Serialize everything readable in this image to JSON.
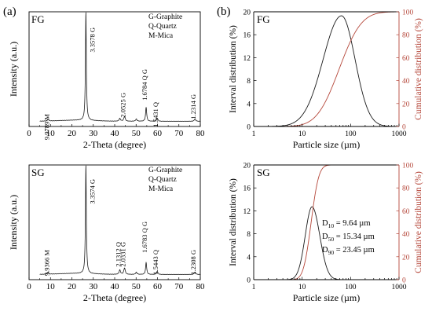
{
  "panel_labels": {
    "a": "(a)",
    "b": "(b)"
  },
  "chart_data": [
    {
      "id": "xrd-fg",
      "type": "line",
      "tag": "FG",
      "xlabel": "2-Theta (degree)",
      "ylabel": "Intensity (a.u.)",
      "xlim": [
        0,
        80
      ],
      "xticks": [
        0,
        10,
        20,
        30,
        40,
        50,
        60,
        70,
        80
      ],
      "legend_lines": [
        "G-Graphite",
        "Q-Quartz",
        "M-Mica"
      ],
      "color": "#1a1a1a",
      "peaks": [
        {
          "x": 8.9,
          "h": 0.018,
          "w": 0.35,
          "label": "9.9789 M"
        },
        {
          "x": 26.55,
          "h": 1.0,
          "w": 0.25,
          "label": "3.3578 G"
        },
        {
          "x": 42.4,
          "h": 0.025,
          "w": 0.4
        },
        {
          "x": 44.6,
          "h": 0.045,
          "w": 0.4,
          "label": "2.0525 G"
        },
        {
          "x": 50.1,
          "h": 0.02,
          "w": 0.4
        },
        {
          "x": 54.7,
          "h": 0.13,
          "w": 0.3,
          "label": "1.6784 Q G"
        },
        {
          "x": 59.9,
          "h": 0.03,
          "w": 0.35,
          "label": "1.5431 Q"
        },
        {
          "x": 77.5,
          "h": 0.022,
          "w": 0.4,
          "label": "1.2314 G"
        }
      ]
    },
    {
      "id": "xrd-sg",
      "type": "line",
      "tag": "SG",
      "xlabel": "2-Theta (degree)",
      "ylabel": "Intensity (a.u.)",
      "xlim": [
        0,
        80
      ],
      "xticks": [
        0,
        10,
        20,
        30,
        40,
        50,
        60,
        70,
        80
      ],
      "legend_lines": [
        "G-Graphite",
        "Q-Quartz",
        "M-Mica"
      ],
      "color": "#1a1a1a",
      "peaks": [
        {
          "x": 8.9,
          "h": 0.018,
          "w": 0.35,
          "label": "9.9366 M"
        },
        {
          "x": 26.55,
          "h": 1.0,
          "w": 0.25,
          "label": "3.3574 G"
        },
        {
          "x": 42.4,
          "h": 0.04,
          "w": 0.4,
          "label": "2.1312 Q"
        },
        {
          "x": 44.6,
          "h": 0.06,
          "w": 0.4,
          "label": "2.0331 G"
        },
        {
          "x": 50.1,
          "h": 0.02,
          "w": 0.4
        },
        {
          "x": 54.7,
          "h": 0.11,
          "w": 0.3,
          "label": "1.6783 Q G"
        },
        {
          "x": 59.9,
          "h": 0.03,
          "w": 0.35,
          "label": "1.5443 Q"
        },
        {
          "x": 77.5,
          "h": 0.022,
          "w": 0.4,
          "label": "1.2308 G"
        }
      ]
    },
    {
      "id": "psd-fg",
      "type": "line",
      "tag": "FG",
      "xscale": "log",
      "xlabel": "Particle size (µm)",
      "ylabel": "Interval distribution (%)",
      "ylabel_right": "Cumulative distribution (%)",
      "xlim": [
        1,
        1000
      ],
      "xticks": [
        1,
        10,
        100,
        1000
      ],
      "ylim": [
        0,
        20
      ],
      "yticks": [
        0,
        4,
        8,
        12,
        16,
        20
      ],
      "ylim_right": [
        0,
        100
      ],
      "yticks_right": [
        0,
        20,
        40,
        60,
        80,
        100
      ],
      "interval": {
        "color": "#1a1a1a",
        "peak_x": 65,
        "peak_y": 19.3,
        "sigma_left": 0.38,
        "sigma_right": 0.28
      },
      "cumulative": {
        "color": "#b5473a",
        "median_x": 58,
        "sigma": 0.36
      }
    },
    {
      "id": "psd-sg",
      "type": "line",
      "tag": "SG",
      "xscale": "log",
      "xlabel": "Particle size (µm)",
      "ylabel": "Interval distribution (%)",
      "ylabel_right": "Cumulative distribution (%)",
      "xlim": [
        1,
        1000
      ],
      "xticks": [
        1,
        10,
        100,
        1000
      ],
      "ylim": [
        0,
        20
      ],
      "yticks": [
        0,
        4,
        8,
        12,
        16,
        20
      ],
      "ylim_right": [
        0,
        100
      ],
      "yticks_right": [
        0,
        20,
        40,
        60,
        80,
        100
      ],
      "interval": {
        "color": "#1a1a1a",
        "peak_x": 16,
        "peak_y": 12.7,
        "sigma_left": 0.14,
        "sigma_right": 0.16
      },
      "cumulative": {
        "color": "#b5473a",
        "median_x": 15.34,
        "sigma": 0.125
      },
      "stats": [
        {
          "sym": "D",
          "sub": "10",
          "text": " = 9.64 µm"
        },
        {
          "sym": "D",
          "sub": "50",
          "text": " = 15.34 µm"
        },
        {
          "sym": "D",
          "sub": "90",
          "text": " = 23.45 µm"
        }
      ]
    }
  ]
}
